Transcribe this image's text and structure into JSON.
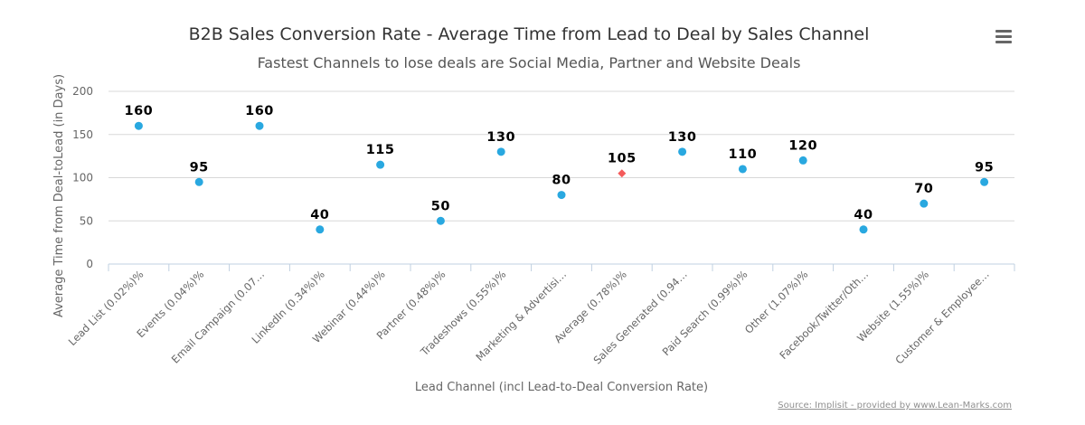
{
  "chart_data": {
    "type": "scatter",
    "title": "B2B Sales Conversion Rate - Average Time from Lead to Deal by Sales Channel",
    "subtitle": "Fastest Channels to lose deals are Social Media, Partner and Website Deals",
    "xlabel": "Lead Channel (incl Lead-to-Deal Conversion Rate)",
    "ylabel": "Average Time from Deal-toLead (in Days)",
    "ylim": [
      0,
      200
    ],
    "yticks": [
      0,
      50,
      100,
      150,
      200
    ],
    "grid": true,
    "legend": "none",
    "categories": [
      "Lead List (0.02%)%",
      "Events (0.04%)%",
      "Email Campaign (0.07…",
      "LinkedIn (0.34%)%",
      "Webinar (0.44%)%",
      "Partner (0.48%)%",
      "Tradeshows (0.55%)%",
      "Marketing & Advertisi…",
      "Average (0.78%)%",
      "Sales Generated (0.94…",
      "Paid Search (0.99%)%",
      "Other (1.07%)%",
      "Facebook/Twitter/Oth…",
      "Website (1.55%)%",
      "Customer & Employee…"
    ],
    "values": [
      160,
      95,
      160,
      40,
      115,
      50,
      130,
      80,
      105,
      130,
      110,
      120,
      40,
      70,
      95
    ],
    "data_labels": [
      "160",
      "95",
      "160",
      "40",
      "115",
      "50",
      "130",
      "80",
      "105",
      "130",
      "110",
      "120",
      "40",
      "70",
      "95"
    ],
    "markers": [
      "circle",
      "circle",
      "circle",
      "circle",
      "circle",
      "circle",
      "circle",
      "circle",
      "diamond",
      "circle",
      "circle",
      "circle",
      "circle",
      "circle",
      "circle"
    ],
    "colors": {
      "point": "#29a8e0",
      "highlight": "#f45b5b"
    }
  },
  "credits": "Source: Implisit - provided by www.Lean-Marks.com",
  "menu_icon": "hamburger-menu-icon"
}
